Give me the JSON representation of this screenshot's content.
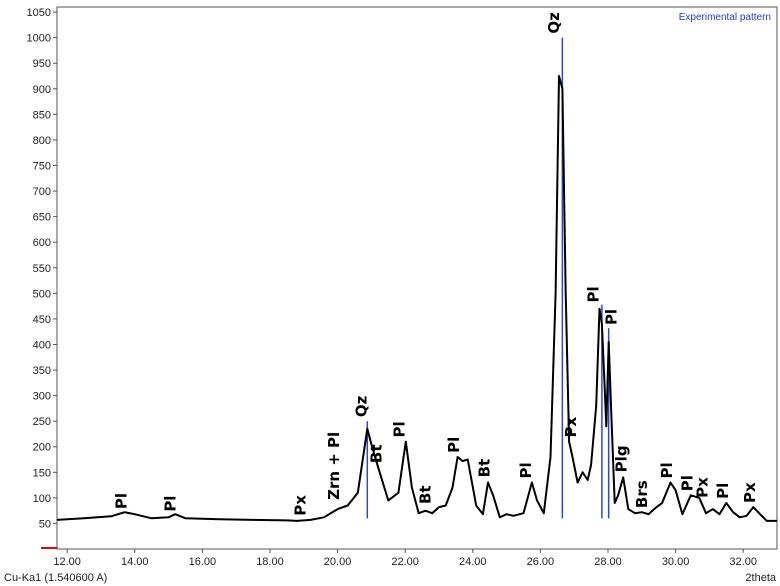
{
  "chart_data": {
    "type": "line",
    "title": "",
    "xlabel": "2theta",
    "ylabel": "",
    "xlim": [
      11.7,
      33.0
    ],
    "ylim": [
      0,
      1060
    ],
    "grid": false,
    "legend": "top-right",
    "legend_entries": [
      "Experimental pattern"
    ],
    "radiation": "Cu-Ka1 (1.540600 A)",
    "x_ticks": [
      "12.00",
      "14.00",
      "16.00",
      "18.00",
      "20.00",
      "22.00",
      "24.00",
      "26.00",
      "28.00",
      "30.00",
      "32.00"
    ],
    "y_ticks": [
      "50",
      "100",
      "150",
      "200",
      "250",
      "300",
      "350",
      "400",
      "450",
      "500",
      "550",
      "600",
      "650",
      "700",
      "750",
      "800",
      "850",
      "900",
      "950",
      "1000",
      "1050"
    ],
    "series": [
      {
        "name": "Experimental pattern",
        "color": "#000000",
        "x": [
          11.7,
          12.5,
          13.3,
          13.7,
          14.0,
          14.5,
          15.0,
          15.2,
          15.5,
          16.5,
          17.5,
          18.5,
          18.8,
          19.2,
          19.6,
          20.0,
          20.3,
          20.6,
          20.88,
          21.0,
          21.2,
          21.5,
          21.8,
          22.02,
          22.2,
          22.4,
          22.6,
          22.8,
          23.0,
          23.2,
          23.4,
          23.55,
          23.7,
          23.85,
          24.1,
          24.3,
          24.45,
          24.6,
          24.8,
          25.0,
          25.2,
          25.5,
          25.75,
          25.9,
          26.1,
          26.3,
          26.45,
          26.55,
          26.65,
          26.75,
          26.85,
          26.95,
          27.1,
          27.25,
          27.4,
          27.5,
          27.65,
          27.75,
          27.82,
          27.9,
          27.95,
          28.02,
          28.1,
          28.2,
          28.3,
          28.45,
          28.6,
          28.8,
          29.0,
          29.2,
          29.4,
          29.6,
          29.85,
          30.0,
          30.2,
          30.45,
          30.7,
          30.9,
          31.1,
          31.3,
          31.5,
          31.7,
          31.9,
          32.1,
          32.3,
          32.5,
          32.7,
          33.0
        ],
        "y": [
          57,
          60,
          64,
          72,
          68,
          60,
          62,
          68,
          60,
          58,
          57,
          56,
          55,
          57,
          62,
          78,
          85,
          110,
          235,
          205,
          160,
          95,
          110,
          210,
          120,
          70,
          75,
          70,
          82,
          85,
          120,
          180,
          172,
          175,
          85,
          68,
          130,
          105,
          62,
          68,
          65,
          70,
          130,
          95,
          70,
          180,
          500,
          925,
          900,
          500,
          210,
          180,
          130,
          150,
          135,
          165,
          280,
          470,
          440,
          320,
          240,
          405,
          260,
          90,
          105,
          140,
          78,
          70,
          72,
          68,
          80,
          90,
          130,
          115,
          68,
          105,
          100,
          70,
          78,
          68,
          90,
          72,
          62,
          65,
          82,
          68,
          55,
          55
        ]
      }
    ],
    "peak_markers": [
      {
        "x": 20.88,
        "top": 250
      },
      {
        "x": 26.65,
        "top": 1000
      },
      {
        "x": 27.82,
        "top": 478
      },
      {
        "x": 28.02,
        "top": 432
      }
    ],
    "annotations": [
      {
        "text": "Pl",
        "x": 13.75,
        "y": 78
      },
      {
        "text": "Pl",
        "x": 15.2,
        "y": 73
      },
      {
        "text": "Px",
        "x": 19.05,
        "y": 65
      },
      {
        "text": "Zrn + Pl",
        "x": 20.05,
        "y": 96
      },
      {
        "text": "Qz",
        "x": 20.85,
        "y": 258
      },
      {
        "text": "Bt",
        "x": 21.3,
        "y": 168
      },
      {
        "text": "Pl",
        "x": 21.98,
        "y": 218
      },
      {
        "text": "Bt",
        "x": 22.75,
        "y": 88
      },
      {
        "text": "Pl",
        "x": 23.6,
        "y": 188
      },
      {
        "text": "Bt",
        "x": 24.5,
        "y": 140
      },
      {
        "text": "Pl",
        "x": 25.72,
        "y": 138
      },
      {
        "text": "Qz",
        "x": 26.55,
        "y": 1008
      },
      {
        "text": "Px",
        "x": 27.05,
        "y": 218
      },
      {
        "text": "Pl",
        "x": 27.72,
        "y": 482
      },
      {
        "text": "Pl",
        "x": 28.25,
        "y": 438
      },
      {
        "text": "Plg",
        "x": 28.55,
        "y": 150
      },
      {
        "text": "Brs",
        "x": 29.15,
        "y": 80
      },
      {
        "text": "Pl",
        "x": 29.9,
        "y": 138
      },
      {
        "text": "Pl",
        "x": 30.5,
        "y": 113
      },
      {
        "text": "Px",
        "x": 30.95,
        "y": 100
      },
      {
        "text": "Pl",
        "x": 31.55,
        "y": 98
      },
      {
        "text": "Px",
        "x": 32.35,
        "y": 90
      }
    ]
  },
  "colors": {
    "line": "#000000",
    "peak_marker": "#3344cc",
    "legend_text": "#1f3fbf",
    "baseline_marker": "#d01010"
  }
}
